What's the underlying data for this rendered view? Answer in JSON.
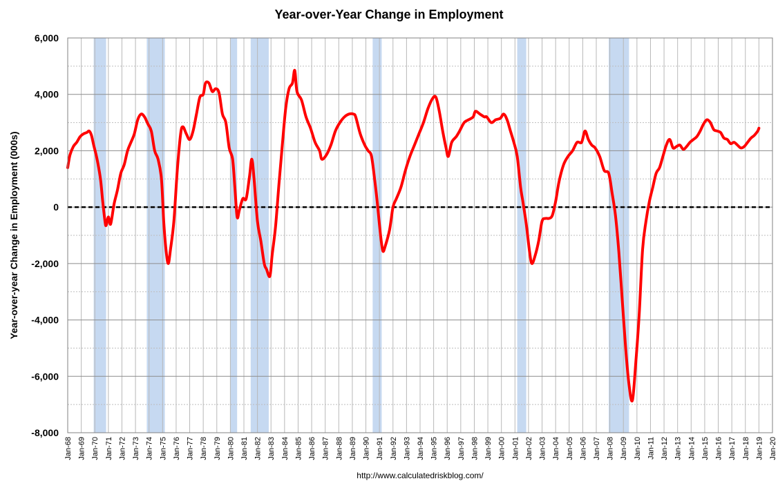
{
  "chart_data": {
    "type": "line",
    "title": "Year-over-Year Change in Employment",
    "ylabel": "Year-over-year Change in Employment (000s)",
    "xlabel": "",
    "source": "http://www.calculatedriskblog.com/",
    "ylim": [
      -8000,
      6000
    ],
    "xlim": [
      "1968-01",
      "2020-01"
    ],
    "y_ticks": [
      {
        "value": 6000,
        "label": "6,000"
      },
      {
        "value": 4000,
        "label": "4,000"
      },
      {
        "value": 2000,
        "label": "2,000"
      },
      {
        "value": 0,
        "label": "0"
      },
      {
        "value": -2000,
        "label": "-2,000"
      },
      {
        "value": -4000,
        "label": "-4,000"
      },
      {
        "value": -6000,
        "label": "-6,000"
      },
      {
        "value": -8000,
        "label": "-8,000"
      }
    ],
    "x_tick_labels": [
      "Jan-68",
      "Jan-69",
      "Jan-70",
      "Jan-71",
      "Jan-72",
      "Jan-73",
      "Jan-74",
      "Jan-75",
      "Jan-76",
      "Jan-77",
      "Jan-78",
      "Jan-79",
      "Jan-80",
      "Jan-81",
      "Jan-82",
      "Jan-83",
      "Jan-84",
      "Jan-85",
      "Jan-86",
      "Jan-87",
      "Jan-88",
      "Jan-89",
      "Jan-90",
      "Jan-91",
      "Jan-92",
      "Jan-93",
      "Jan-94",
      "Jan-95",
      "Jan-96",
      "Jan-97",
      "Jan-98",
      "Jan-99",
      "Jan-00",
      "Jan-01",
      "Jan-02",
      "Jan-03",
      "Jan-04",
      "Jan-05",
      "Jan-06",
      "Jan-07",
      "Jan-08",
      "Jan-09",
      "Jan-10",
      "Jan-11",
      "Jan-12",
      "Jan-13",
      "Jan-14",
      "Jan-15",
      "Jan-16",
      "Jan-17",
      "Jan-18",
      "Jan-19",
      "Jan-20"
    ],
    "grid": true,
    "recessions": [
      {
        "start": "1969-12",
        "end": "1970-11"
      },
      {
        "start": "1973-11",
        "end": "1975-03"
      },
      {
        "start": "1980-01",
        "end": "1980-07"
      },
      {
        "start": "1981-07",
        "end": "1982-11"
      },
      {
        "start": "1990-07",
        "end": "1991-03"
      },
      {
        "start": "2001-03",
        "end": "2001-11"
      },
      {
        "start": "2007-12",
        "end": "2009-06"
      }
    ],
    "colors": {
      "line": "#ff0000",
      "recession": "#c6d9f1",
      "zero_line": "#000000"
    },
    "series": [
      {
        "points": [
          [
            "1968-01",
            1400
          ],
          [
            "1968-03",
            1850
          ],
          [
            "1968-06",
            2150
          ],
          [
            "1968-09",
            2300
          ],
          [
            "1968-12",
            2500
          ],
          [
            "1969-03",
            2600
          ],
          [
            "1969-06",
            2650
          ],
          [
            "1969-08",
            2700
          ],
          [
            "1969-10",
            2550
          ],
          [
            "1969-12",
            2200
          ],
          [
            "1970-03",
            1700
          ],
          [
            "1970-06",
            1000
          ],
          [
            "1970-08",
            200
          ],
          [
            "1970-10",
            -500
          ],
          [
            "1970-11",
            -650
          ],
          [
            "1971-01",
            -350
          ],
          [
            "1971-03",
            -600
          ],
          [
            "1971-06",
            100
          ],
          [
            "1971-09",
            600
          ],
          [
            "1971-12",
            1200
          ],
          [
            "1972-03",
            1500
          ],
          [
            "1972-06",
            2000
          ],
          [
            "1972-09",
            2300
          ],
          [
            "1972-12",
            2600
          ],
          [
            "1973-03",
            3100
          ],
          [
            "1973-06",
            3300
          ],
          [
            "1973-09",
            3200
          ],
          [
            "1973-12",
            2950
          ],
          [
            "1974-03",
            2700
          ],
          [
            "1974-06",
            2000
          ],
          [
            "1974-09",
            1700
          ],
          [
            "1974-12",
            1000
          ],
          [
            "1975-02",
            -500
          ],
          [
            "1975-04",
            -1500
          ],
          [
            "1975-06",
            -2000
          ],
          [
            "1975-08",
            -1500
          ],
          [
            "1975-11",
            -500
          ],
          [
            "1976-02",
            1300
          ],
          [
            "1976-05",
            2600
          ],
          [
            "1976-07",
            2850
          ],
          [
            "1976-10",
            2600
          ],
          [
            "1977-01",
            2400
          ],
          [
            "1977-04",
            2700
          ],
          [
            "1977-07",
            3300
          ],
          [
            "1977-10",
            3900
          ],
          [
            "1978-01",
            4000
          ],
          [
            "1978-03",
            4400
          ],
          [
            "1978-06",
            4400
          ],
          [
            "1978-09",
            4100
          ],
          [
            "1978-12",
            4200
          ],
          [
            "1979-03",
            4050
          ],
          [
            "1979-06",
            3300
          ],
          [
            "1979-09",
            3000
          ],
          [
            "1979-12",
            2100
          ],
          [
            "1980-03",
            1700
          ],
          [
            "1980-05",
            700
          ],
          [
            "1980-07",
            -350
          ],
          [
            "1980-09",
            -100
          ],
          [
            "1980-12",
            300
          ],
          [
            "1981-03",
            300
          ],
          [
            "1981-06",
            1100
          ],
          [
            "1981-08",
            1700
          ],
          [
            "1981-10",
            1000
          ],
          [
            "1982-01",
            -500
          ],
          [
            "1982-04",
            -1200
          ],
          [
            "1982-07",
            -2000
          ],
          [
            "1982-09",
            -2200
          ],
          [
            "1982-12",
            -2450
          ],
          [
            "1983-02",
            -1700
          ],
          [
            "1983-05",
            -700
          ],
          [
            "1983-08",
            800
          ],
          [
            "1983-11",
            2200
          ],
          [
            "1984-02",
            3500
          ],
          [
            "1984-05",
            4200
          ],
          [
            "1984-08",
            4400
          ],
          [
            "1984-10",
            4850
          ],
          [
            "1984-12",
            4100
          ],
          [
            "1985-04",
            3800
          ],
          [
            "1985-08",
            3200
          ],
          [
            "1985-12",
            2800
          ],
          [
            "1986-04",
            2300
          ],
          [
            "1986-08",
            2000
          ],
          [
            "1986-10",
            1700
          ],
          [
            "1987-02",
            1850
          ],
          [
            "1987-06",
            2200
          ],
          [
            "1987-10",
            2700
          ],
          [
            "1988-02",
            3000
          ],
          [
            "1988-06",
            3200
          ],
          [
            "1988-10",
            3300
          ],
          [
            "1989-02",
            3300
          ],
          [
            "1989-04",
            3200
          ],
          [
            "1989-08",
            2600
          ],
          [
            "1989-12",
            2200
          ],
          [
            "1990-03",
            2000
          ],
          [
            "1990-06",
            1800
          ],
          [
            "1990-09",
            900
          ],
          [
            "1990-11",
            200
          ],
          [
            "1991-02",
            -1000
          ],
          [
            "1991-04",
            -1550
          ],
          [
            "1991-06",
            -1400
          ],
          [
            "1991-10",
            -800
          ],
          [
            "1992-01",
            0
          ],
          [
            "1992-04",
            300
          ],
          [
            "1992-08",
            700
          ],
          [
            "1992-12",
            1300
          ],
          [
            "1993-04",
            1800
          ],
          [
            "1993-08",
            2200
          ],
          [
            "1993-12",
            2600
          ],
          [
            "1994-04",
            3000
          ],
          [
            "1994-08",
            3500
          ],
          [
            "1994-12",
            3850
          ],
          [
            "1995-03",
            3900
          ],
          [
            "1995-06",
            3400
          ],
          [
            "1995-09",
            2700
          ],
          [
            "1995-12",
            2100
          ],
          [
            "1996-02",
            1800
          ],
          [
            "1996-05",
            2300
          ],
          [
            "1996-09",
            2500
          ],
          [
            "1996-12",
            2700
          ],
          [
            "1997-04",
            3000
          ],
          [
            "1997-08",
            3100
          ],
          [
            "1997-12",
            3200
          ],
          [
            "1998-02",
            3400
          ],
          [
            "1998-06",
            3300
          ],
          [
            "1998-10",
            3200
          ],
          [
            "1998-12",
            3200
          ],
          [
            "1999-04",
            3000
          ],
          [
            "1999-08",
            3100
          ],
          [
            "1999-12",
            3150
          ],
          [
            "2000-03",
            3300
          ],
          [
            "2000-06",
            3100
          ],
          [
            "2000-09",
            2700
          ],
          [
            "2000-12",
            2300
          ],
          [
            "2001-03",
            1800
          ],
          [
            "2001-06",
            700
          ],
          [
            "2001-08",
            200
          ],
          [
            "2001-11",
            -600
          ],
          [
            "2002-02",
            -1600
          ],
          [
            "2002-04",
            -2000
          ],
          [
            "2002-07",
            -1700
          ],
          [
            "2002-10",
            -1200
          ],
          [
            "2003-01",
            -500
          ],
          [
            "2003-04",
            -400
          ],
          [
            "2003-07",
            -400
          ],
          [
            "2003-10",
            -300
          ],
          [
            "2004-01",
            200
          ],
          [
            "2004-04",
            900
          ],
          [
            "2004-08",
            1500
          ],
          [
            "2004-12",
            1800
          ],
          [
            "2005-04",
            2000
          ],
          [
            "2005-08",
            2300
          ],
          [
            "2005-12",
            2300
          ],
          [
            "2006-03",
            2700
          ],
          [
            "2006-06",
            2400
          ],
          [
            "2006-09",
            2200
          ],
          [
            "2006-12",
            2100
          ],
          [
            "2007-04",
            1800
          ],
          [
            "2007-08",
            1300
          ],
          [
            "2007-12",
            1200
          ],
          [
            "2008-03",
            500
          ],
          [
            "2008-06",
            -300
          ],
          [
            "2008-09",
            -1600
          ],
          [
            "2008-12",
            -3300
          ],
          [
            "2009-03",
            -5000
          ],
          [
            "2009-06",
            -6300
          ],
          [
            "2009-09",
            -6850
          ],
          [
            "2009-12",
            -5500
          ],
          [
            "2010-03",
            -3800
          ],
          [
            "2010-06",
            -1500
          ],
          [
            "2010-09",
            -500
          ],
          [
            "2010-12",
            200
          ],
          [
            "2011-03",
            700
          ],
          [
            "2011-06",
            1200
          ],
          [
            "2011-09",
            1400
          ],
          [
            "2011-12",
            1800
          ],
          [
            "2012-03",
            2200
          ],
          [
            "2012-06",
            2400
          ],
          [
            "2012-09",
            2100
          ],
          [
            "2012-12",
            2150
          ],
          [
            "2013-03",
            2200
          ],
          [
            "2013-06",
            2050
          ],
          [
            "2013-09",
            2150
          ],
          [
            "2013-12",
            2300
          ],
          [
            "2014-03",
            2400
          ],
          [
            "2014-06",
            2500
          ],
          [
            "2014-09",
            2700
          ],
          [
            "2014-12",
            2950
          ],
          [
            "2015-03",
            3100
          ],
          [
            "2015-06",
            3000
          ],
          [
            "2015-09",
            2750
          ],
          [
            "2015-12",
            2700
          ],
          [
            "2016-03",
            2650
          ],
          [
            "2016-06",
            2450
          ],
          [
            "2016-09",
            2400
          ],
          [
            "2016-12",
            2250
          ],
          [
            "2017-03",
            2300
          ],
          [
            "2017-06",
            2200
          ],
          [
            "2017-09",
            2100
          ],
          [
            "2017-12",
            2150
          ],
          [
            "2018-03",
            2300
          ],
          [
            "2018-06",
            2450
          ],
          [
            "2018-09",
            2550
          ],
          [
            "2018-12",
            2700
          ],
          [
            "2019-01",
            2800
          ]
        ]
      }
    ]
  }
}
